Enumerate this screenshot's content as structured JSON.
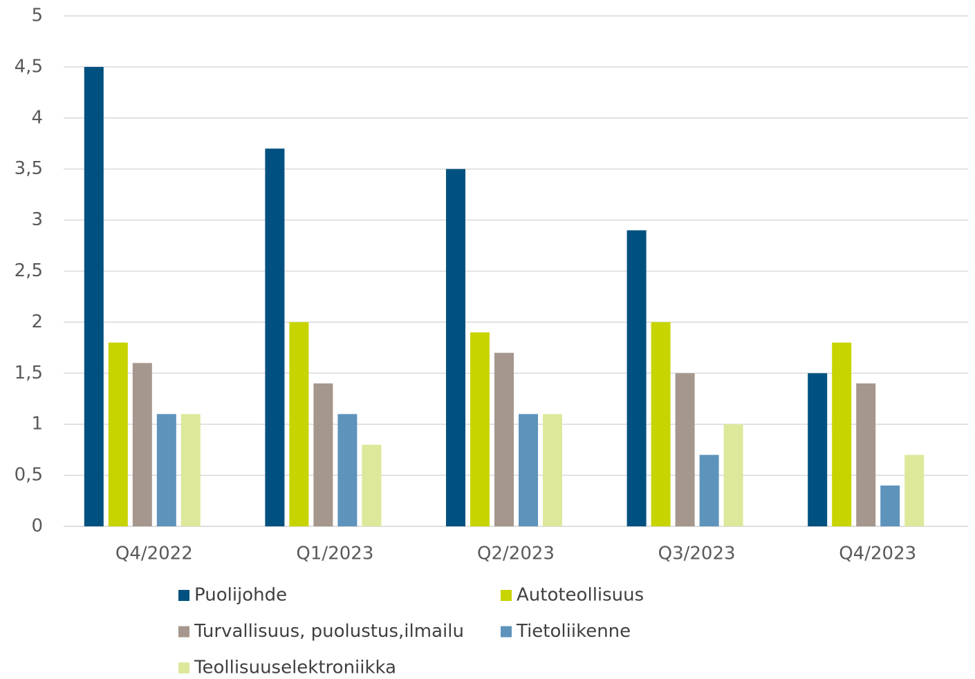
{
  "chart_data": {
    "type": "bar",
    "categories": [
      "Q4/2022",
      "Q1/2023",
      "Q2/2023",
      "Q3/2023",
      "Q4/2023"
    ],
    "series": [
      {
        "name": "Puolijohde",
        "color": "#005180",
        "values": [
          4.5,
          3.7,
          3.5,
          2.9,
          1.5
        ]
      },
      {
        "name": "Autoteollisuus",
        "color": "#c8d400",
        "values": [
          1.8,
          2.0,
          1.9,
          2.0,
          1.8
        ]
      },
      {
        "name": "Turvallisuus, puolustus,ilmailu",
        "color": "#a5978d",
        "values": [
          1.6,
          1.4,
          1.7,
          1.5,
          1.4
        ]
      },
      {
        "name": "Tietoliikenne",
        "color": "#5e93bb",
        "values": [
          1.1,
          1.1,
          1.1,
          0.7,
          0.4
        ]
      },
      {
        "name": "Teollisuuselektroniikka",
        "color": "#dde89b",
        "values": [
          1.1,
          0.8,
          1.1,
          1.0,
          0.7
        ]
      }
    ],
    "ylim": [
      0,
      5
    ],
    "yticks": [
      0,
      {
        "value": 0.5,
        "label": "0,5"
      },
      1,
      {
        "value": 1.5,
        "label": "1,5"
      },
      2,
      {
        "value": 2.5,
        "label": "2,5"
      },
      3,
      {
        "value": 3.5,
        "label": "3,5"
      },
      4,
      {
        "value": 4.5,
        "label": "4,5"
      },
      5
    ],
    "grid": true,
    "legend": "bottom"
  }
}
